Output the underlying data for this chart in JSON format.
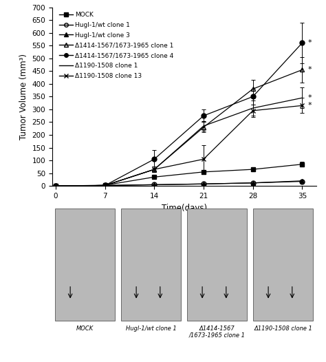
{
  "xlabel": "Time(days)",
  "ylabel": "Tumor Volume (mm³)",
  "xlim": [
    -0.5,
    37
  ],
  "ylim": [
    0,
    700
  ],
  "xticks": [
    0,
    7,
    14,
    21,
    28,
    35
  ],
  "yticks": [
    0,
    50,
    100,
    150,
    200,
    250,
    300,
    350,
    400,
    450,
    500,
    550,
    600,
    650,
    700
  ],
  "ytick_labels": [
    "0",
    "50",
    "100",
    "150",
    "200",
    "250",
    "300",
    "350",
    "400",
    "450",
    "500",
    "550",
    "600",
    "650",
    "700"
  ],
  "days": [
    0,
    7,
    14,
    21,
    28,
    35
  ],
  "series": [
    {
      "label": "MOCK",
      "values": [
        0,
        3,
        35,
        55,
        65,
        85
      ],
      "errors": [
        0,
        1,
        5,
        8,
        8,
        10
      ],
      "marker": "s",
      "fillstyle": "full",
      "linestyle": "-",
      "markersize": 5,
      "suffix": ""
    },
    {
      "label": "Hugl-1/wt clone 1",
      "values": [
        0,
        2,
        5,
        8,
        12,
        18
      ],
      "errors": [
        0,
        1,
        1,
        1,
        2,
        3
      ],
      "marker": "o",
      "fillstyle": "none",
      "linestyle": "-",
      "markersize": 5,
      "suffix": ""
    },
    {
      "label": "Hugl-1/wt clone 3",
      "values": [
        0,
        2,
        5,
        8,
        12,
        20
      ],
      "errors": [
        0,
        1,
        1,
        1,
        2,
        3
      ],
      "marker": "^",
      "fillstyle": "full",
      "linestyle": "-",
      "markersize": 5,
      "suffix": ""
    },
    {
      "label": "Δ1414-1567/1673-1965 clone 1",
      "values": [
        0,
        2,
        65,
        230,
        380,
        455
      ],
      "errors": [
        0,
        1,
        10,
        20,
        35,
        50
      ],
      "marker": "^",
      "fillstyle": "none",
      "linestyle": "-",
      "markersize": 5,
      "suffix": "*"
    },
    {
      "label": "Δ1414-1567/1673-1965 clone 4",
      "values": [
        0,
        2,
        105,
        275,
        350,
        560
      ],
      "errors": [
        0,
        1,
        35,
        25,
        30,
        80
      ],
      "marker": "o",
      "fillstyle": "full",
      "linestyle": "-",
      "markersize": 5,
      "suffix": "*"
    },
    {
      "label": "Δ1190-1508 clone 1",
      "values": [
        0,
        2,
        65,
        235,
        305,
        345
      ],
      "errors": [
        0,
        1,
        10,
        20,
        30,
        40
      ],
      "marker": "",
      "fillstyle": "full",
      "linestyle": "-",
      "markersize": 0,
      "suffix": "*"
    },
    {
      "label": "Δ1190-1508 clone 13",
      "values": [
        0,
        2,
        65,
        105,
        295,
        315
      ],
      "errors": [
        0,
        1,
        10,
        55,
        25,
        30
      ],
      "marker": "x",
      "fillstyle": "full",
      "linestyle": "-",
      "markersize": 5,
      "suffix": "*"
    }
  ],
  "legend_fontsize": 6.5,
  "axis_fontsize": 8.5,
  "tick_fontsize": 7.5,
  "background_color": "#ffffff",
  "bottom_labels": [
    "MOCK",
    "Hugl-1/wt clone 1",
    "Δ1414-1567\n/1673-1965 clone 1",
    "Δ1190-1508 clone 1"
  ],
  "bottom_gray": 0.72
}
